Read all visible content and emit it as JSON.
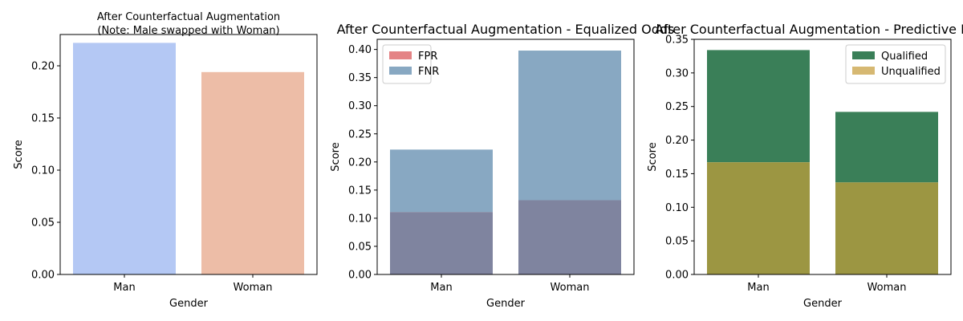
{
  "chart_data": [
    {
      "type": "bar",
      "title_lines": [
        "After Counterfactual Augmentation",
        "(Note: Male swapped with Woman)"
      ],
      "xlabel": "Gender",
      "ylabel": "Score",
      "categories": [
        "Man",
        "Woman"
      ],
      "series": [
        {
          "values": [
            0.222,
            0.194
          ],
          "colors": [
            "#b4c8f4",
            "#edbda7"
          ]
        }
      ],
      "ylim": [
        0,
        0.23
      ],
      "yticks": [
        0.0,
        0.05,
        0.1,
        0.15,
        0.2
      ],
      "ytick_labels": [
        "0.00",
        "0.05",
        "0.10",
        "0.15",
        "0.20"
      ],
      "legend": null
    },
    {
      "type": "bar",
      "title_lines": [
        "After Counterfactual Augmentation - Equalized Odds"
      ],
      "xlabel": "Gender",
      "ylabel": "Score",
      "categories": [
        "Man",
        "Woman"
      ],
      "series": [
        {
          "name": "FPR",
          "values": [
            0.111,
            0.132
          ],
          "color": "#e48385"
        },
        {
          "name": "FNR",
          "values": [
            0.222,
            0.398
          ],
          "color": "#88a8c2"
        }
      ],
      "overlap_color": "#7f849f",
      "ylim": [
        0,
        0.418
      ],
      "yticks": [
        0.0,
        0.05,
        0.1,
        0.15,
        0.2,
        0.25,
        0.3,
        0.35,
        0.4
      ],
      "ytick_labels": [
        "0.00",
        "0.05",
        "0.10",
        "0.15",
        "0.20",
        "0.25",
        "0.30",
        "0.35",
        "0.40"
      ],
      "legend": "upper-left"
    },
    {
      "type": "bar",
      "title_lines": [
        "After Counterfactual Augmentation - Predictive Rate"
      ],
      "xlabel": "Gender",
      "ylabel": "Score",
      "categories": [
        "Man",
        "Woman"
      ],
      "series": [
        {
          "name": "Qualified",
          "values": [
            0.334,
            0.242
          ],
          "color": "#3a7f58"
        },
        {
          "name": "Unqualified",
          "values": [
            0.167,
            0.137
          ],
          "color": "#d6b872"
        }
      ],
      "overlap_color": "#9c9642",
      "ylim": [
        0,
        0.35
      ],
      "yticks": [
        0.0,
        0.05,
        0.1,
        0.15,
        0.2,
        0.25,
        0.3,
        0.35
      ],
      "ytick_labels": [
        "0.00",
        "0.05",
        "0.10",
        "0.15",
        "0.20",
        "0.25",
        "0.30",
        "0.35"
      ],
      "legend": "upper-right"
    }
  ]
}
